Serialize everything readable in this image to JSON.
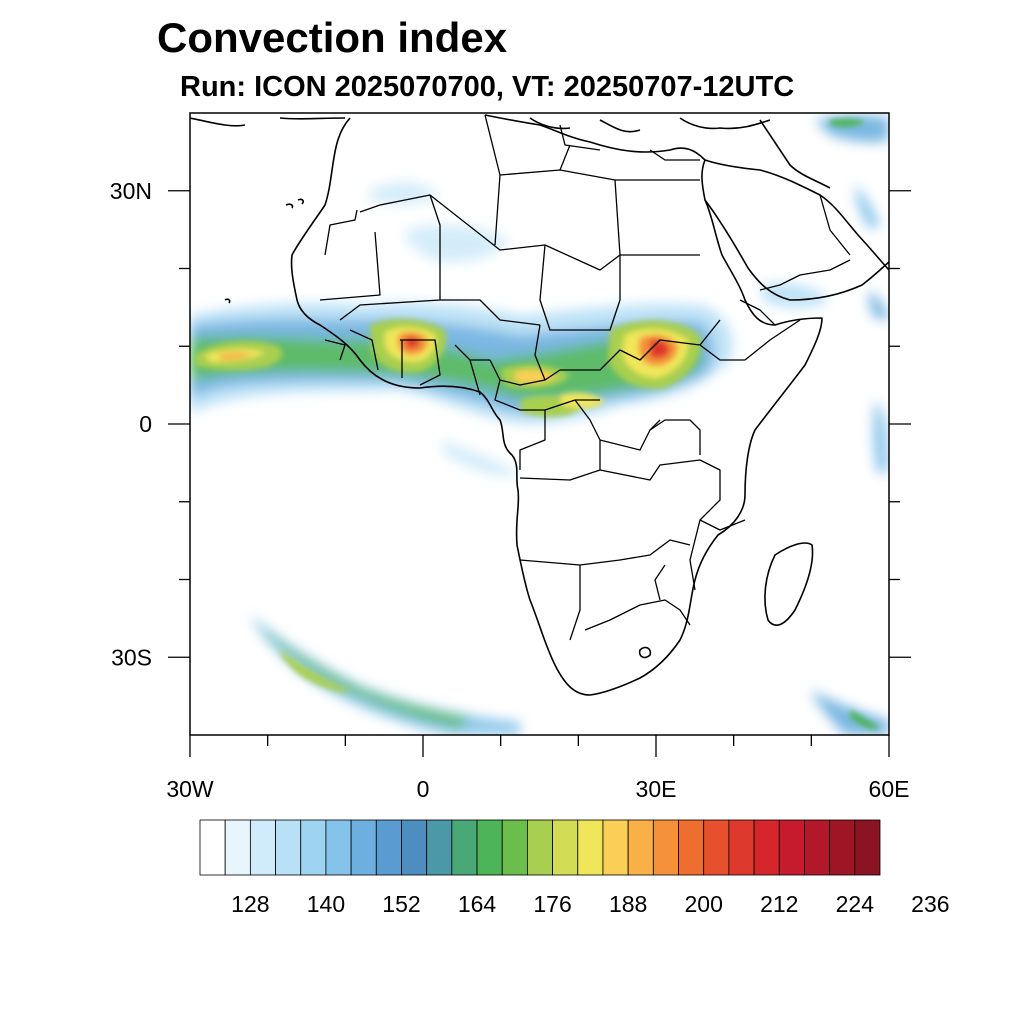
{
  "title": "Convection index",
  "subtitle": "Run: ICON 2025070700,  VT: 20250707-12UTC",
  "map": {
    "region": "Africa",
    "projection": "lat-lon",
    "lon_range": [
      -30,
      60
    ],
    "lat_range": [
      -40,
      40
    ],
    "lon_ticks": [
      {
        "value": -30,
        "label": "30W"
      },
      {
        "value": 0,
        "label": "0"
      },
      {
        "value": 30,
        "label": "30E"
      },
      {
        "value": 60,
        "label": "60E"
      }
    ],
    "lat_ticks": [
      {
        "value": 30,
        "label": "30N"
      },
      {
        "value": 0,
        "label": "0"
      },
      {
        "value": -30,
        "label": "30S"
      }
    ],
    "lon_minor": [
      -20,
      -10,
      10,
      20,
      40,
      50
    ],
    "lat_minor": [
      20,
      10,
      -10,
      -20
    ]
  },
  "colorbar": {
    "colors": [
      "#ffffff",
      "#e8f5fc",
      "#d0ebf9",
      "#b8e0f6",
      "#9ed4f2",
      "#85c3ea",
      "#6db0e0",
      "#5a9bd2",
      "#4d8dc0",
      "#4a98a8",
      "#4aa876",
      "#4db45a",
      "#6cbe4c",
      "#a9cf50",
      "#d2dc55",
      "#f0e65a",
      "#fbcf55",
      "#f8b047",
      "#f4913a",
      "#ee6e30",
      "#e6502c",
      "#de392c",
      "#d4262b",
      "#c51b2c",
      "#b2172a",
      "#9e1526",
      "#8a1422"
    ],
    "labels": [
      "128",
      "140",
      "152",
      "164",
      "176",
      "188",
      "200",
      "212",
      "224",
      "236"
    ]
  }
}
